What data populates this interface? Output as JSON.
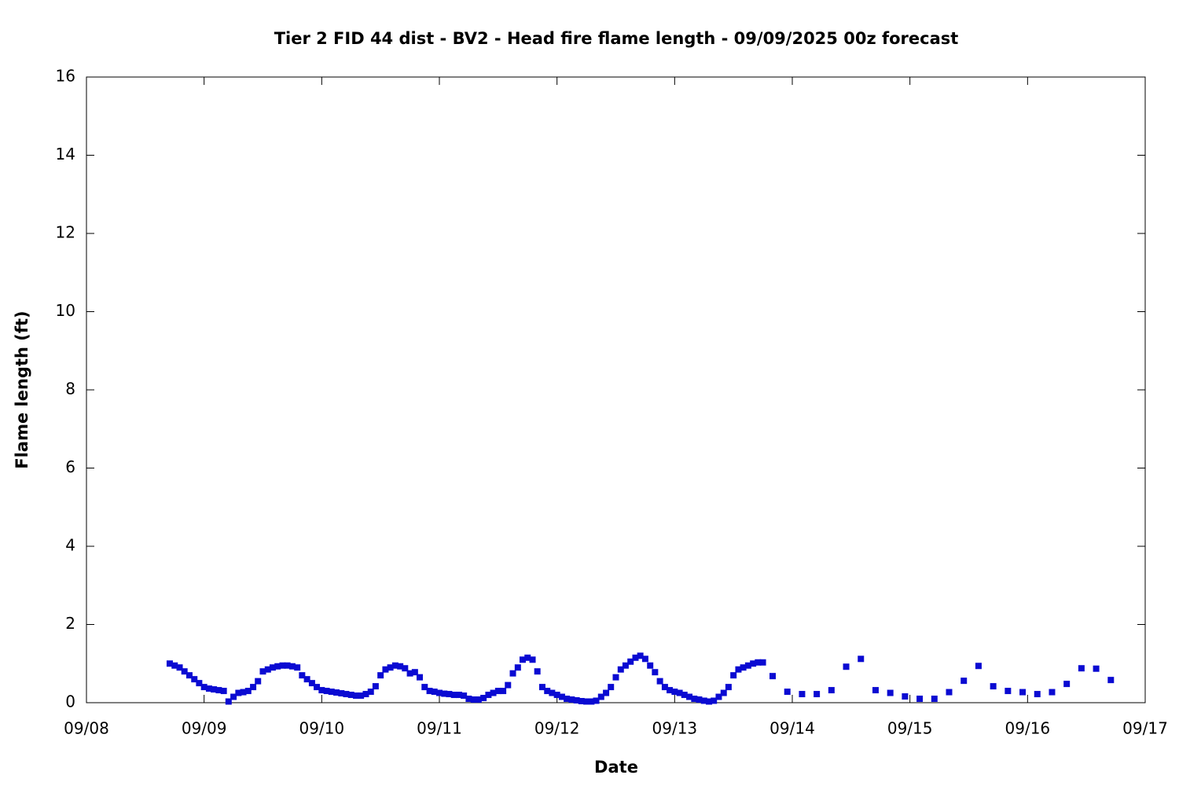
{
  "chart_data": {
    "type": "scatter",
    "title": "Tier 2 FID 44 dist - BV2 - Head fire flame length - 09/09/2025 00z forecast",
    "x_label": "Date",
    "y_label": "Flame length (ft)",
    "xlim": [
      8,
      17
    ],
    "xticks": [
      {
        "value": 8,
        "label": "09/08"
      },
      {
        "value": 9,
        "label": "09/09"
      },
      {
        "value": 10,
        "label": "09/10"
      },
      {
        "value": 11,
        "label": "09/11"
      },
      {
        "value": 12,
        "label": "09/12"
      },
      {
        "value": 13,
        "label": "09/13"
      },
      {
        "value": 14,
        "label": "09/14"
      },
      {
        "value": 15,
        "label": "09/15"
      },
      {
        "value": 16,
        "label": "09/16"
      },
      {
        "value": 17,
        "label": "09/17"
      }
    ],
    "ylim": [
      0,
      16
    ],
    "yticks": [
      0,
      2,
      4,
      6,
      8,
      10,
      12,
      14,
      16
    ],
    "series": [
      {
        "color": "#0a0ad2",
        "x": [
          8.708,
          8.75,
          8.792,
          8.833,
          8.875,
          8.917,
          8.958,
          9,
          9.042,
          9.083,
          9.125,
          9.167,
          9.208,
          9.25,
          9.292,
          9.333,
          9.375,
          9.417,
          9.458,
          9.5,
          9.542,
          9.583,
          9.625,
          9.667,
          9.708,
          9.75,
          9.792,
          9.833,
          9.875,
          9.917,
          9.958,
          10,
          10.042,
          10.083,
          10.125,
          10.167,
          10.208,
          10.25,
          10.292,
          10.333,
          10.375,
          10.417,
          10.458,
          10.5,
          10.542,
          10.583,
          10.625,
          10.667,
          10.708,
          10.75,
          10.792,
          10.833,
          10.875,
          10.917,
          10.958,
          11,
          11.042,
          11.083,
          11.125,
          11.167,
          11.208,
          11.25,
          11.292,
          11.333,
          11.375,
          11.417,
          11.458,
          11.5,
          11.542,
          11.583,
          11.625,
          11.667,
          11.708,
          11.75,
          11.792,
          11.833,
          11.875,
          11.917,
          11.958,
          12,
          12.042,
          12.083,
          12.125,
          12.167,
          12.208,
          12.25,
          12.292,
          12.333,
          12.375,
          12.417,
          12.458,
          12.5,
          12.542,
          12.583,
          12.625,
          12.667,
          12.708,
          12.75,
          12.792,
          12.833,
          12.875,
          12.917,
          12.958,
          13,
          13.042,
          13.083,
          13.125,
          13.167,
          13.208,
          13.25,
          13.292,
          13.333,
          13.375,
          13.417,
          13.458,
          13.5,
          13.542,
          13.583,
          13.625,
          13.667,
          13.708,
          13.75,
          13.833,
          13.958,
          14.083,
          14.208,
          14.333,
          14.458,
          14.583,
          14.708,
          14.833,
          14.958,
          15.083,
          15.208,
          15.333,
          15.458,
          15.583,
          15.708,
          15.833,
          15.958,
          16.083,
          16.208,
          16.333,
          16.458,
          16.583,
          16.708
        ],
        "values": [
          1.0,
          0.95,
          0.9,
          0.8,
          0.7,
          0.6,
          0.5,
          0.4,
          0.36,
          0.34,
          0.32,
          0.3,
          0.03,
          0.15,
          0.25,
          0.27,
          0.3,
          0.4,
          0.55,
          0.8,
          0.85,
          0.9,
          0.93,
          0.95,
          0.95,
          0.93,
          0.9,
          0.7,
          0.6,
          0.5,
          0.4,
          0.32,
          0.3,
          0.28,
          0.26,
          0.24,
          0.22,
          0.2,
          0.18,
          0.18,
          0.22,
          0.28,
          0.42,
          0.7,
          0.85,
          0.9,
          0.95,
          0.93,
          0.88,
          0.75,
          0.78,
          0.65,
          0.4,
          0.3,
          0.28,
          0.25,
          0.23,
          0.22,
          0.2,
          0.2,
          0.18,
          0.1,
          0.08,
          0.08,
          0.12,
          0.2,
          0.25,
          0.3,
          0.3,
          0.45,
          0.75,
          0.9,
          1.1,
          1.15,
          1.1,
          0.8,
          0.4,
          0.3,
          0.25,
          0.2,
          0.15,
          0.1,
          0.08,
          0.06,
          0.04,
          0.03,
          0.03,
          0.05,
          0.15,
          0.25,
          0.4,
          0.65,
          0.85,
          0.95,
          1.05,
          1.15,
          1.2,
          1.12,
          0.95,
          0.78,
          0.55,
          0.4,
          0.32,
          0.28,
          0.25,
          0.2,
          0.15,
          0.1,
          0.08,
          0.05,
          0.03,
          0.05,
          0.15,
          0.25,
          0.4,
          0.7,
          0.85,
          0.9,
          0.95,
          1.0,
          1.03,
          1.03,
          0.68,
          0.28,
          0.22,
          0.22,
          0.32,
          0.92,
          1.12,
          0.32,
          0.25,
          0.16,
          0.1,
          0.1,
          0.27,
          0.56,
          0.94,
          0.42,
          0.3,
          0.27,
          0.22,
          0.27,
          0.48,
          0.88,
          0.87,
          0.58
        ]
      }
    ]
  }
}
